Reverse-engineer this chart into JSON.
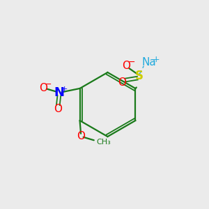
{
  "background_color": "#ebebeb",
  "fig_width": 3.0,
  "fig_height": 3.0,
  "dpi": 100,
  "atom_colors": {
    "S": "#cccc00",
    "O": "#ff0000",
    "N": "#0000ff",
    "Na": "#22aadd",
    "C": "#1a7a1a",
    "bond": "#1a7a1a"
  }
}
